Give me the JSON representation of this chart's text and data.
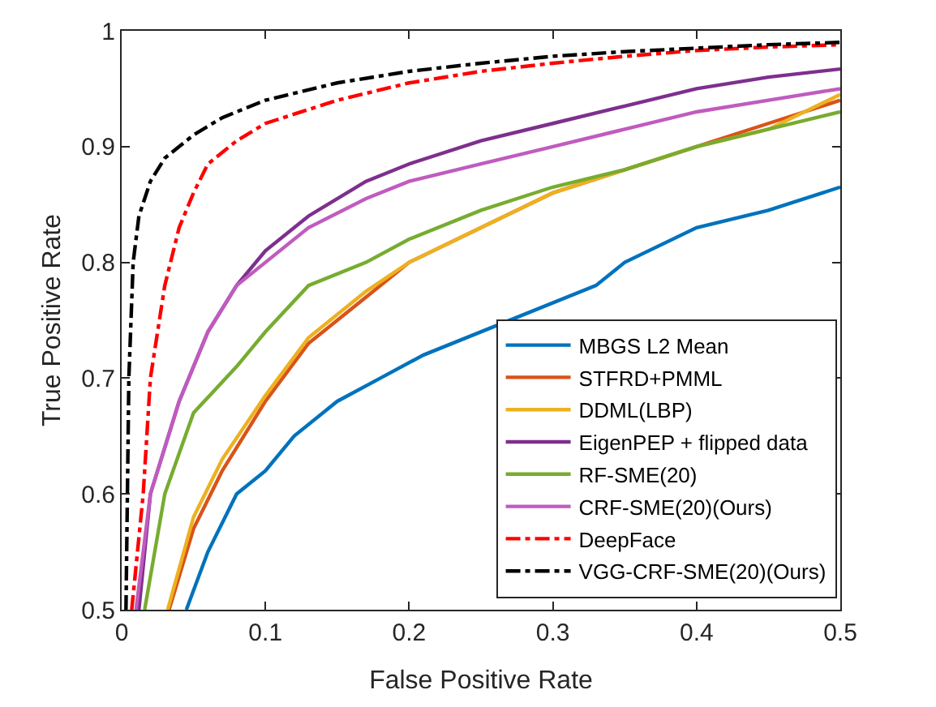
{
  "chart_data": {
    "type": "line",
    "xlabel": "False Positive Rate",
    "ylabel": "True Positive Rate",
    "xlim": [
      0,
      0.5
    ],
    "ylim": [
      0.5,
      1
    ],
    "xticks": [
      0,
      0.1,
      0.2,
      0.3,
      0.4,
      0.5
    ],
    "yticks": [
      0.5,
      0.6,
      0.7,
      0.8,
      0.9,
      1
    ],
    "legend": "bottom right",
    "line_style": "solid",
    "series": [
      {
        "name": "MBGS L2 Mean",
        "color": "#0072bd",
        "x": [
          0.045,
          0.06,
          0.08,
          0.1,
          0.12,
          0.15,
          0.18,
          0.21,
          0.33,
          0.35,
          0.4,
          0.45,
          0.5
        ],
        "values": [
          0.5,
          0.55,
          0.6,
          0.62,
          0.65,
          0.68,
          0.7,
          0.72,
          0.78,
          0.8,
          0.83,
          0.845,
          0.865
        ]
      },
      {
        "name": "STFRD+PMML",
        "color": "#d95319",
        "x": [
          0.033,
          0.05,
          0.07,
          0.1,
          0.13,
          0.17,
          0.2,
          0.25,
          0.3,
          0.35,
          0.4,
          0.45,
          0.5
        ],
        "values": [
          0.5,
          0.57,
          0.62,
          0.68,
          0.73,
          0.77,
          0.8,
          0.83,
          0.86,
          0.88,
          0.9,
          0.92,
          0.94
        ]
      },
      {
        "name": "DDML(LBP)",
        "color": "#edb120",
        "x": [
          0.032,
          0.05,
          0.07,
          0.1,
          0.13,
          0.17,
          0.2,
          0.25,
          0.3,
          0.35,
          0.4,
          0.45,
          0.5
        ],
        "values": [
          0.5,
          0.58,
          0.63,
          0.685,
          0.735,
          0.775,
          0.8,
          0.83,
          0.86,
          0.88,
          0.9,
          0.915,
          0.945
        ]
      },
      {
        "name": "EigenPEP + flipped data",
        "color": "#7e2f8e",
        "x": [
          0.012,
          0.02,
          0.04,
          0.06,
          0.08,
          0.1,
          0.13,
          0.17,
          0.2,
          0.25,
          0.3,
          0.35,
          0.4,
          0.45,
          0.5
        ],
        "values": [
          0.5,
          0.6,
          0.68,
          0.74,
          0.78,
          0.81,
          0.84,
          0.87,
          0.885,
          0.905,
          0.92,
          0.935,
          0.95,
          0.96,
          0.967
        ]
      },
      {
        "name": "RF-SME(20)",
        "color": "#77ac30",
        "x": [
          0.016,
          0.03,
          0.05,
          0.08,
          0.1,
          0.13,
          0.17,
          0.2,
          0.25,
          0.3,
          0.35,
          0.4,
          0.45,
          0.5
        ],
        "values": [
          0.5,
          0.6,
          0.67,
          0.71,
          0.74,
          0.78,
          0.8,
          0.82,
          0.845,
          0.865,
          0.88,
          0.9,
          0.915,
          0.93
        ]
      },
      {
        "name": "CRF-SME(20)(Ours)",
        "color": "#c05bbf",
        "x": [
          0.01,
          0.02,
          0.04,
          0.06,
          0.08,
          0.1,
          0.13,
          0.17,
          0.2,
          0.25,
          0.3,
          0.35,
          0.4,
          0.45,
          0.5
        ],
        "values": [
          0.5,
          0.6,
          0.68,
          0.74,
          0.78,
          0.8,
          0.83,
          0.855,
          0.87,
          0.885,
          0.9,
          0.915,
          0.93,
          0.94,
          0.95
        ]
      },
      {
        "name": "DeepFace",
        "color": "#ff0000",
        "line_style": "dashed",
        "x": [
          0.007,
          0.015,
          0.02,
          0.03,
          0.04,
          0.05,
          0.06,
          0.08,
          0.1,
          0.15,
          0.2,
          0.25,
          0.3,
          0.35,
          0.4,
          0.45,
          0.5
        ],
        "values": [
          0.5,
          0.6,
          0.7,
          0.78,
          0.83,
          0.86,
          0.885,
          0.905,
          0.92,
          0.94,
          0.955,
          0.965,
          0.972,
          0.978,
          0.983,
          0.986,
          0.988
        ]
      },
      {
        "name": "VGG-CRF-SME(20)(Ours)",
        "color": "#000000",
        "line_style": "dashed",
        "x": [
          0.003,
          0.005,
          0.008,
          0.012,
          0.02,
          0.03,
          0.05,
          0.07,
          0.1,
          0.15,
          0.2,
          0.25,
          0.3,
          0.35,
          0.4,
          0.45,
          0.5
        ],
        "values": [
          0.5,
          0.7,
          0.8,
          0.84,
          0.87,
          0.89,
          0.91,
          0.925,
          0.94,
          0.955,
          0.965,
          0.972,
          0.978,
          0.982,
          0.985,
          0.988,
          0.99
        ]
      }
    ]
  }
}
